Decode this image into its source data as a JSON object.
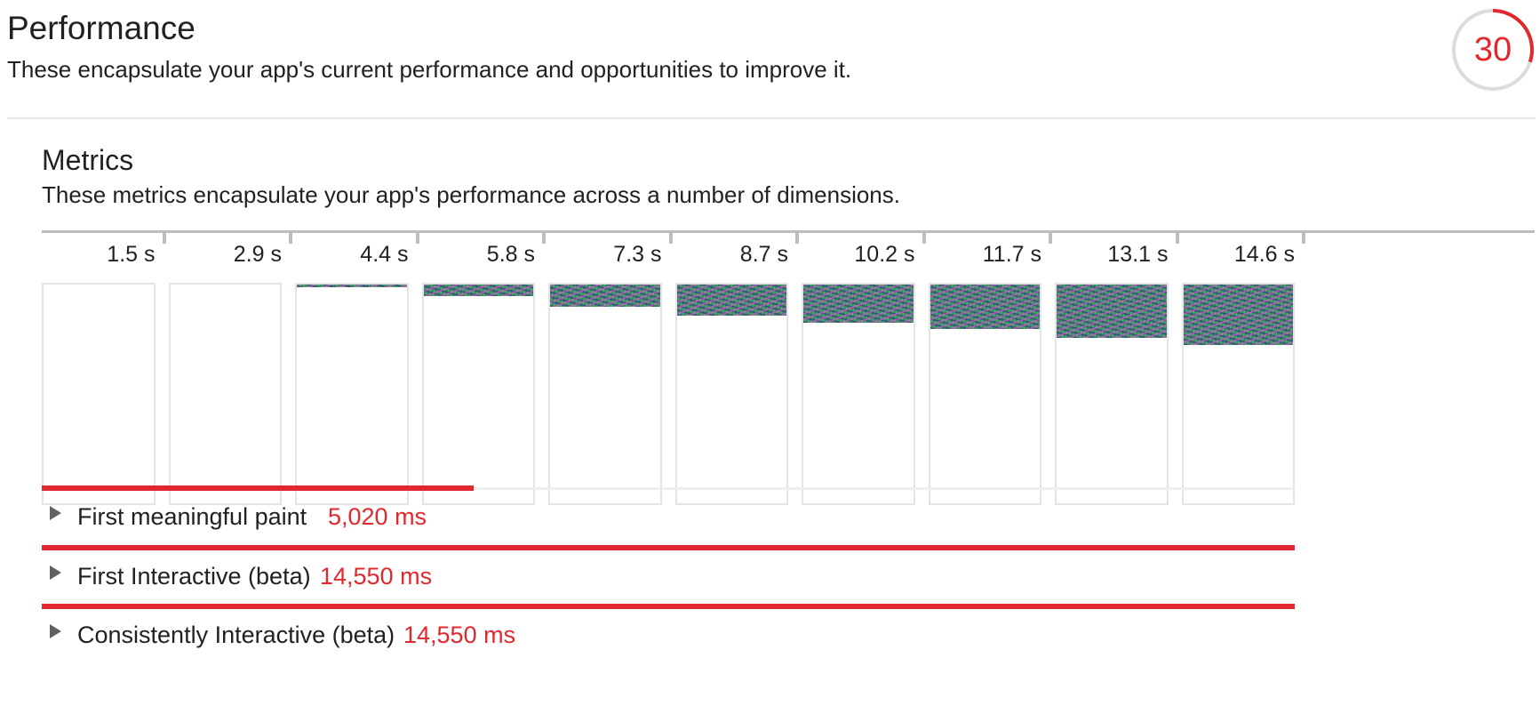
{
  "performance": {
    "title": "Performance",
    "description": "These encapsulate your app's current performance and opportunities to improve it.",
    "score": {
      "value": "30",
      "fraction": 0.3,
      "color": "#e0282e",
      "track_color": "#dcdcdc"
    }
  },
  "metrics": {
    "title": "Metrics",
    "description": "These metrics encapsulate your app's performance across a number of dimensions.",
    "filmstrip": [
      {
        "time": "1.5 s",
        "paint_fraction": 0.0
      },
      {
        "time": "2.9 s",
        "paint_fraction": 0.0
      },
      {
        "time": "4.4 s",
        "paint_fraction": 0.01
      },
      {
        "time": "5.8 s",
        "paint_fraction": 0.05
      },
      {
        "time": "7.3 s",
        "paint_fraction": 0.1
      },
      {
        "time": "8.7 s",
        "paint_fraction": 0.14
      },
      {
        "time": "10.2 s",
        "paint_fraction": 0.17
      },
      {
        "time": "11.7 s",
        "paint_fraction": 0.2
      },
      {
        "time": "13.1 s",
        "paint_fraction": 0.24
      },
      {
        "time": "14.6 s",
        "paint_fraction": 0.27
      }
    ],
    "items": [
      {
        "label": "First meaningful paint",
        "value": "5,020 ms",
        "bar_fraction": 0.345,
        "bar_color": "#e0282e",
        "icon": "caret-right-icon"
      },
      {
        "label": "First Interactive (beta)",
        "value": "14,550 ms",
        "bar_fraction": 1.0,
        "bar_color": "#e0282e",
        "icon": "caret-right-icon"
      },
      {
        "label": "Consistently Interactive (beta)",
        "value": "14,550 ms",
        "bar_fraction": 1.0,
        "bar_color": "#e0282e",
        "icon": "caret-right-icon"
      }
    ]
  }
}
